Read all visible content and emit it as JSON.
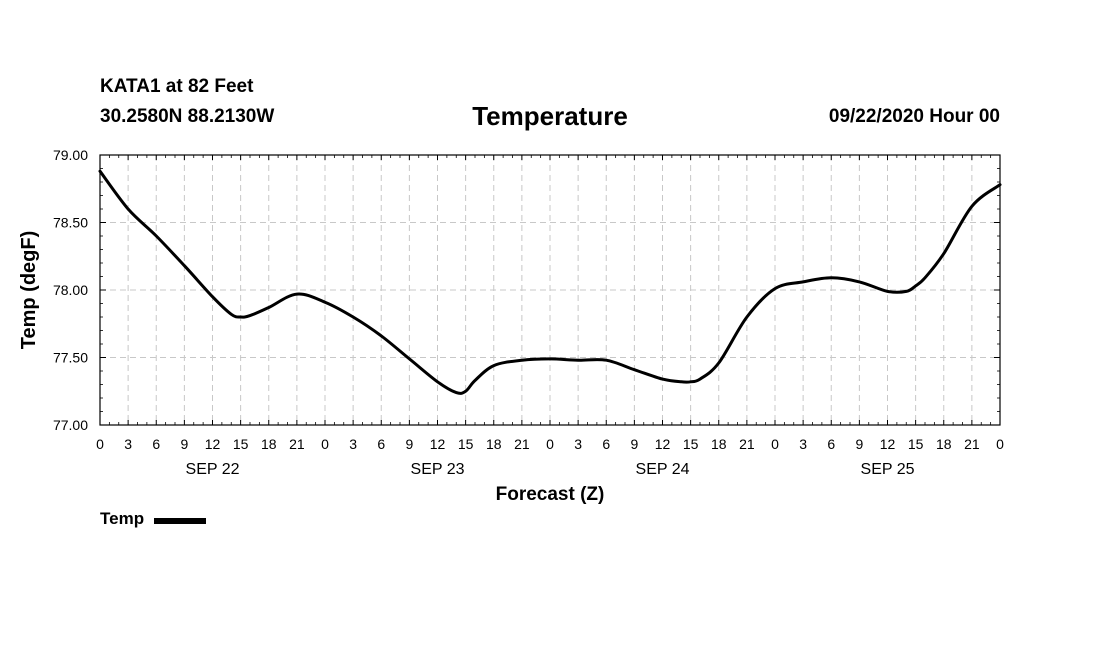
{
  "header": {
    "station": "KATA1 at 82 Feet",
    "coords": "30.2580N 88.2130W",
    "title": "Temperature",
    "timestamp": "09/22/2020 Hour 00"
  },
  "legend": {
    "label": "Temp"
  },
  "chart_data": {
    "type": "line",
    "title": "Temperature",
    "xlabel": "Forecast (Z)",
    "ylabel": "Temp (degF)",
    "ylim": [
      77.0,
      79.0
    ],
    "yticks": [
      "77.00",
      "77.50",
      "78.00",
      "78.50",
      "79.00"
    ],
    "xlim": [
      0,
      96
    ],
    "xtick_labels": [
      "0",
      "3",
      "6",
      "9",
      "12",
      "15",
      "18",
      "21",
      "0",
      "3",
      "6",
      "9",
      "12",
      "15",
      "18",
      "21",
      "0",
      "3",
      "6",
      "9",
      "12",
      "15",
      "18",
      "21",
      "0",
      "3",
      "6",
      "9",
      "12",
      "15",
      "18",
      "21",
      "0"
    ],
    "day_labels": [
      {
        "label": "SEP 22",
        "hour": 12
      },
      {
        "label": "SEP 23",
        "hour": 36
      },
      {
        "label": "SEP 24",
        "hour": 60
      },
      {
        "label": "SEP 25",
        "hour": 84
      }
    ],
    "grid": true,
    "legend_position": "bottom-left",
    "series": [
      {
        "name": "Temp",
        "color": "#000000",
        "x": [
          0,
          3,
          6,
          9,
          12,
          14,
          15,
          16,
          18,
          21,
          24,
          27,
          30,
          33,
          36,
          38,
          39,
          40,
          42,
          45,
          48,
          51,
          54,
          57,
          60,
          62,
          63,
          64,
          66,
          69,
          72,
          75,
          78,
          81,
          84,
          86,
          87,
          88,
          90,
          93,
          96
        ],
        "y": [
          78.88,
          78.6,
          78.4,
          78.18,
          77.95,
          77.82,
          77.8,
          77.81,
          77.87,
          77.97,
          77.91,
          77.8,
          77.66,
          77.49,
          77.32,
          77.24,
          77.25,
          77.33,
          77.44,
          77.48,
          77.49,
          77.48,
          77.48,
          77.41,
          77.34,
          77.32,
          77.32,
          77.34,
          77.46,
          77.8,
          78.01,
          78.06,
          78.09,
          78.06,
          77.99,
          77.99,
          78.03,
          78.09,
          78.27,
          78.62,
          78.78
        ]
      }
    ]
  }
}
